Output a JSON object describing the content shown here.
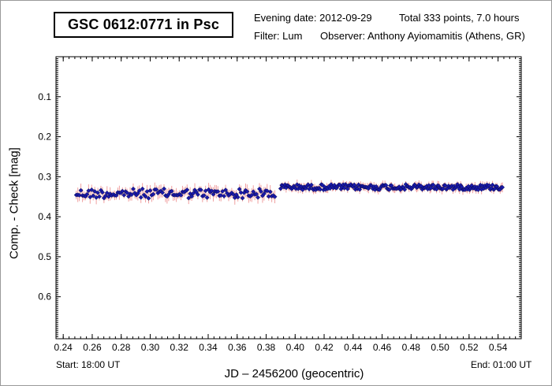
{
  "header": {
    "star_name": "GSC 0612:0771 in Psc",
    "evening_date": "Evening date: 2012-09-29",
    "total": "Total 333 points, 7.0 hours",
    "filter": "Filter: Lum",
    "observer": "Observer: Anthony Ayiomamitis (Athens, GR)"
  },
  "footer": {
    "start": "Start: 18:00 UT",
    "end": "End: 01:00 UT"
  },
  "chart_data": {
    "type": "scatter",
    "xlabel": "JD – 2456200  (geocentric)",
    "ylabel": "Comp. - Check [mag]",
    "xlim": [
      0.235,
      0.556
    ],
    "ylim": [
      0.705,
      0.0
    ],
    "y_inverted": true,
    "x_ticks": [
      0.24,
      0.26,
      0.28,
      0.3,
      0.32,
      0.34,
      0.36,
      0.38,
      0.4,
      0.42,
      0.44,
      0.46,
      0.48,
      0.5,
      0.52,
      0.54
    ],
    "x_tick_labels": [
      "0.24",
      "0.26",
      "0.28",
      "0.30",
      "0.32",
      "0.34",
      "0.36",
      "0.38",
      "0.40",
      "0.42",
      "0.44",
      "0.46",
      "0.48",
      "0.50",
      "0.52",
      "0.54"
    ],
    "y_ticks": [
      0.1,
      0.2,
      0.3,
      0.4,
      0.5,
      0.6
    ],
    "y_tick_labels": [
      "0.1",
      "0.2",
      "0.3",
      "0.4",
      "0.5",
      "0.6"
    ],
    "grid": false,
    "marker_color": "#1a1aaa",
    "errorbar_color": "#f0a0a0",
    "segments": [
      {
        "x_start": 0.249,
        "x_end": 0.386,
        "mean": 0.342,
        "slope": 0.0,
        "jitter": 0.012,
        "err": 0.013,
        "count": 130
      },
      {
        "x_start": 0.39,
        "x_end": 0.543,
        "mean": 0.326,
        "slope": 0.0,
        "jitter": 0.007,
        "err": 0.009,
        "count": 203
      }
    ],
    "points_total": 333
  }
}
